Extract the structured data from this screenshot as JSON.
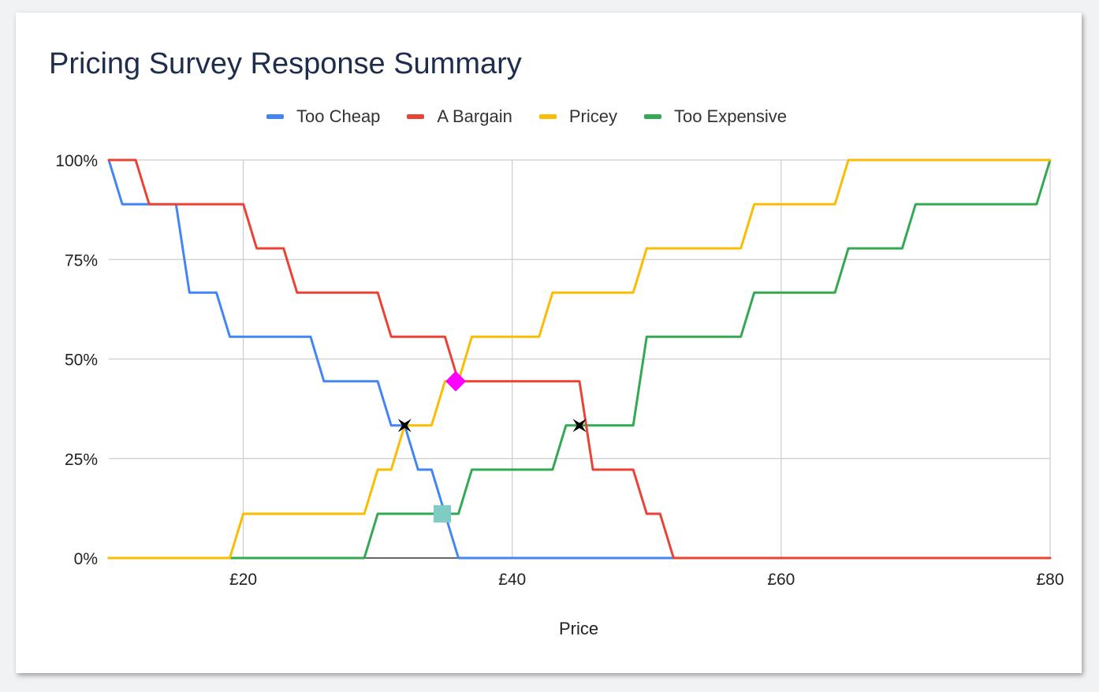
{
  "chart_data": {
    "type": "line",
    "title": "Pricing Survey Response Summary",
    "xlabel": "Price",
    "ylabel": "",
    "x_tick_labels": [
      "£20",
      "£40",
      "£60",
      "£80"
    ],
    "x_ticks": [
      20,
      40,
      60,
      80
    ],
    "y_tick_labels": [
      "0%",
      "25%",
      "50%",
      "75%",
      "100%"
    ],
    "y_ticks": [
      0,
      25,
      50,
      75,
      100
    ],
    "xlim": [
      10,
      80
    ],
    "ylim": [
      0,
      100
    ],
    "grid": true,
    "legend_position": "top",
    "series": [
      {
        "name": "Too Cheap",
        "color": "#4285f4",
        "points": [
          [
            10,
            100
          ],
          [
            11,
            88.9
          ],
          [
            15,
            88.9
          ],
          [
            16,
            66.7
          ],
          [
            18,
            66.7
          ],
          [
            19,
            55.6
          ],
          [
            25,
            55.6
          ],
          [
            26,
            44.4
          ],
          [
            30,
            44.4
          ],
          [
            31,
            33.3
          ],
          [
            32,
            33.3
          ],
          [
            33,
            22.2
          ],
          [
            34,
            22.2
          ],
          [
            35,
            11.1
          ],
          [
            36,
            0
          ],
          [
            53,
            0
          ]
        ]
      },
      {
        "name": "A Bargain",
        "color": "#ea4335",
        "points": [
          [
            10,
            100
          ],
          [
            12,
            100
          ],
          [
            13,
            88.9
          ],
          [
            20,
            88.9
          ],
          [
            21,
            77.8
          ],
          [
            23,
            77.8
          ],
          [
            24,
            66.7
          ],
          [
            30,
            66.7
          ],
          [
            31,
            55.6
          ],
          [
            35,
            55.6
          ],
          [
            36,
            44.4
          ],
          [
            45,
            44.4
          ],
          [
            46,
            22.2
          ],
          [
            49,
            22.2
          ],
          [
            50,
            11.1
          ],
          [
            51,
            11.1
          ],
          [
            52,
            0
          ],
          [
            80,
            0
          ]
        ]
      },
      {
        "name": "Pricey",
        "color": "#fbbc04",
        "points": [
          [
            10,
            0
          ],
          [
            19,
            0
          ],
          [
            20,
            11.1
          ],
          [
            29,
            11.1
          ],
          [
            30,
            22.2
          ],
          [
            31,
            22.2
          ],
          [
            32,
            33.3
          ],
          [
            34,
            33.3
          ],
          [
            35,
            44.4
          ],
          [
            36,
            44.4
          ],
          [
            37,
            55.6
          ],
          [
            42,
            55.6
          ],
          [
            43,
            66.7
          ],
          [
            49,
            66.7
          ],
          [
            50,
            77.8
          ],
          [
            57,
            77.8
          ],
          [
            58,
            88.9
          ],
          [
            64,
            88.9
          ],
          [
            65,
            100
          ],
          [
            80,
            100
          ]
        ]
      },
      {
        "name": "Too Expensive",
        "color": "#34a853",
        "points": [
          [
            10,
            0
          ],
          [
            29,
            0
          ],
          [
            30,
            11.1
          ],
          [
            36,
            11.1
          ],
          [
            37,
            22.2
          ],
          [
            43,
            22.2
          ],
          [
            44,
            33.3
          ],
          [
            49,
            33.3
          ],
          [
            50,
            55.6
          ],
          [
            57,
            55.6
          ],
          [
            58,
            66.7
          ],
          [
            64,
            66.7
          ],
          [
            65,
            77.8
          ],
          [
            69,
            77.8
          ],
          [
            70,
            88.9
          ],
          [
            79,
            88.9
          ],
          [
            80,
            100
          ]
        ]
      }
    ],
    "markers": [
      {
        "shape": "star",
        "color": "#000000",
        "x": 32,
        "y": 33.3
      },
      {
        "shape": "star",
        "color": "#000000",
        "x": 45,
        "y": 33.3
      },
      {
        "shape": "diamond",
        "color": "#ff00ff",
        "x": 35.8,
        "y": 44.4
      },
      {
        "shape": "square",
        "color": "#80cbc4",
        "x": 34.8,
        "y": 11.1
      }
    ]
  }
}
